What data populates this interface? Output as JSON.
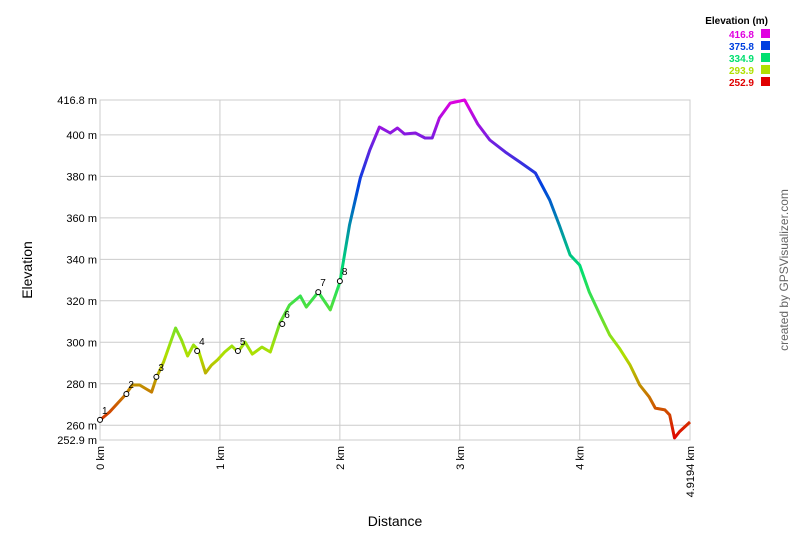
{
  "chart_data": {
    "type": "line",
    "xlabel": "Distance",
    "ylabel": "Elevation",
    "credit": "created by GPSVisualizer.com",
    "xlim": [
      0,
      4.9194
    ],
    "ylim": [
      252.9,
      416.8
    ],
    "xticks": [
      {
        "value": 0,
        "label": "0 km"
      },
      {
        "value": 1,
        "label": "1 km"
      },
      {
        "value": 2,
        "label": "2 km"
      },
      {
        "value": 3,
        "label": "3 km"
      },
      {
        "value": 4,
        "label": "4 km"
      },
      {
        "value": 4.9194,
        "label": "4.9194 km"
      }
    ],
    "yticks": [
      {
        "value": 252.9,
        "label": "252.9 m"
      },
      {
        "value": 260,
        "label": "260 m"
      },
      {
        "value": 280,
        "label": "280 m"
      },
      {
        "value": 300,
        "label": "300 m"
      },
      {
        "value": 320,
        "label": "320 m"
      },
      {
        "value": 340,
        "label": "340 m"
      },
      {
        "value": 360,
        "label": "360 m"
      },
      {
        "value": 380,
        "label": "380 m"
      },
      {
        "value": 400,
        "label": "400 m"
      },
      {
        "value": 416.8,
        "label": "416.8 m"
      }
    ],
    "grid": true,
    "color_scale": {
      "title": "Elevation (m)",
      "values": [
        416.8,
        375.8,
        334.9,
        293.9,
        252.9
      ],
      "colors": [
        "#e000e0",
        "#0040e0",
        "#00e070",
        "#b0e000",
        "#e00000"
      ]
    },
    "x": [
      0,
      0.08,
      0.21,
      0.27,
      0.33,
      0.4,
      0.43,
      0.47,
      0.53,
      0.58,
      0.63,
      0.68,
      0.73,
      0.78,
      0.82,
      0.88,
      0.93,
      0.98,
      1.04,
      1.1,
      1.15,
      1.21,
      1.27,
      1.35,
      1.42,
      1.5,
      1.58,
      1.67,
      1.72,
      1.82,
      1.92,
      2.0,
      2.08,
      2.17,
      2.25,
      2.33,
      2.42,
      2.48,
      2.54,
      2.63,
      2.71,
      2.77,
      2.83,
      2.92,
      3.04,
      3.15,
      3.25,
      3.38,
      3.5,
      3.63,
      3.75,
      3.83,
      3.92,
      4.0,
      4.08,
      4.17,
      4.25,
      4.33,
      4.42,
      4.5,
      4.58,
      4.63,
      4.71,
      4.75,
      4.79,
      4.83,
      4.9194
    ],
    "values": [
      262.5,
      266.4,
      274.6,
      279.4,
      279.4,
      277,
      276,
      283,
      290.5,
      298.7,
      306.9,
      301,
      293.4,
      298.7,
      296.3,
      285.2,
      289,
      291.5,
      295.3,
      298.2,
      295.3,
      300.1,
      294.3,
      297.7,
      295.3,
      309.3,
      318,
      322.3,
      317,
      324.2,
      315.6,
      329,
      356.5,
      379.2,
      392.7,
      403.8,
      400.9,
      403.3,
      400.4,
      400.9,
      398.5,
      398.5,
      408.1,
      415.3,
      416.8,
      405.2,
      397.5,
      391.7,
      386.9,
      381.6,
      368.6,
      356.5,
      342.1,
      337.2,
      324.2,
      313.1,
      303.5,
      297.2,
      289,
      279.4,
      273.6,
      268.3,
      267.4,
      265,
      253.9,
      256.8,
      261.6
    ],
    "waypoints": {
      "names": [
        "1",
        "2",
        "3",
        "4",
        "5",
        "6",
        "7",
        "8"
      ],
      "x": [
        0,
        0.22,
        0.47,
        0.81,
        1.15,
        1.52,
        1.82,
        2.0
      ],
      "y": [
        262.6,
        275.1,
        283.3,
        295.8,
        295.8,
        308.8,
        324.2,
        329.5
      ]
    }
  }
}
